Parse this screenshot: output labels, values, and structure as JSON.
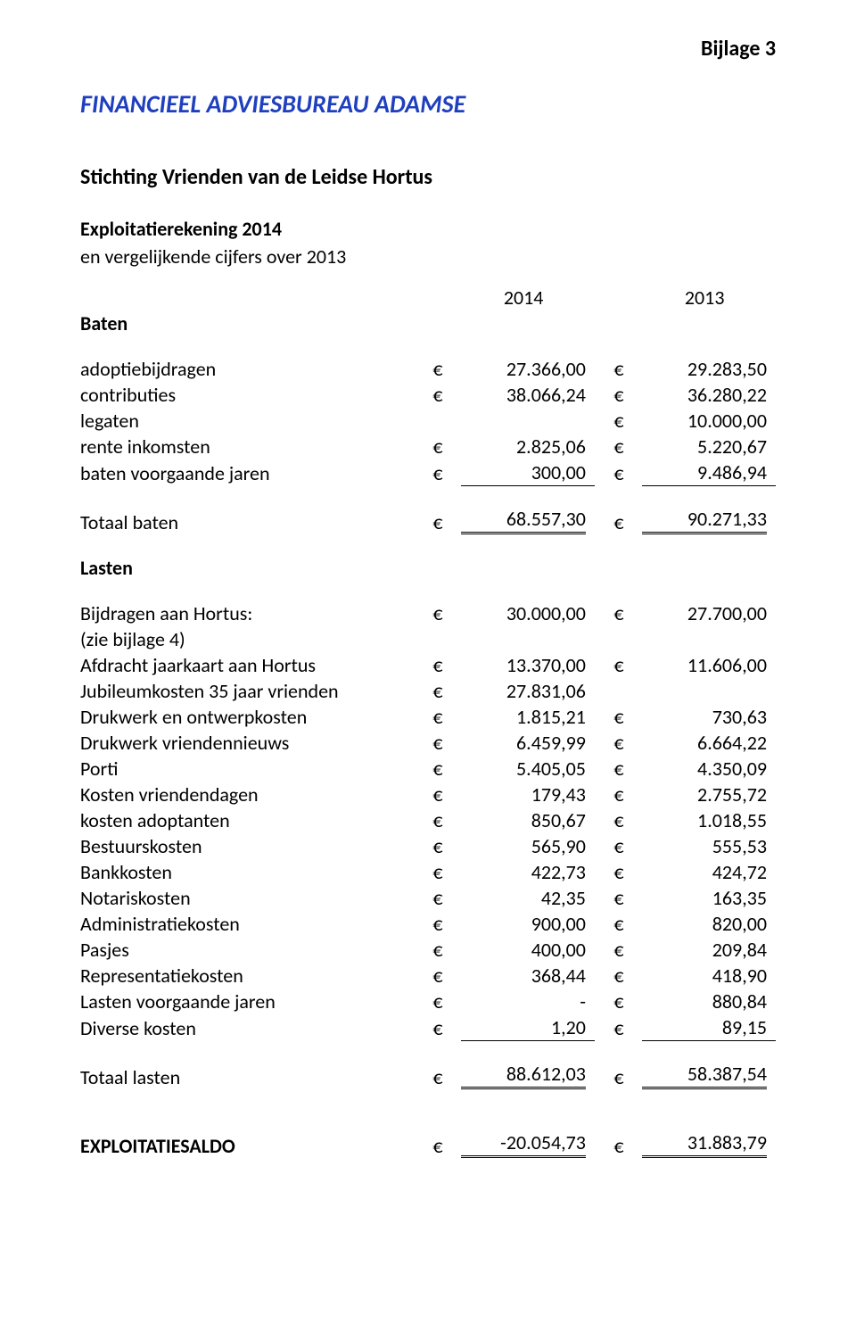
{
  "page": {
    "bijlage": "Bijlage 3",
    "company": "FINANCIEEL ADVIESBUREAU ADAMSE",
    "company_color": "#1f3fbf",
    "subtitle": "Stichting Vrienden van de Leidse Hortus",
    "section_title": "Exploitatierekening 2014",
    "section_sub": "en vergelijkende cijfers over 2013",
    "year1": "2014",
    "year2": "2013",
    "currency": "€"
  },
  "baten": {
    "heading": "Baten",
    "rows": [
      {
        "label": "adoptiebijdragen",
        "v1": "27.366,00",
        "v2": "29.283,50"
      },
      {
        "label": "contributies",
        "v1": "38.066,24",
        "v2": "36.280,22"
      },
      {
        "label": "legaten",
        "v1": "",
        "v2": "10.000,00"
      },
      {
        "label": "rente inkomsten",
        "v1": "2.825,06",
        "v2": "5.220,67"
      },
      {
        "label": "baten voorgaande jaren",
        "v1": "300,00",
        "v2": "9.486,94"
      }
    ],
    "total_label": "Totaal baten",
    "total_v1": "68.557,30",
    "total_v2": "90.271,33"
  },
  "lasten": {
    "heading": "Lasten",
    "sub_heading": "Bijdragen aan Hortus:",
    "sub_note": "(zie bijlage 4)",
    "sub_v1": "30.000,00",
    "sub_v2": "27.700,00",
    "rows": [
      {
        "label": "Afdracht jaarkaart aan Hortus",
        "v1": "13.370,00",
        "v2": "11.606,00"
      },
      {
        "label": "Jubileumkosten 35 jaar vrienden",
        "v1": "27.831,06",
        "v2": ""
      },
      {
        "label": "Drukwerk en ontwerpkosten",
        "v1": "1.815,21",
        "v2": "730,63"
      },
      {
        "label": "Drukwerk vriendennieuws",
        "v1": "6.459,99",
        "v2": "6.664,22"
      },
      {
        "label": "Porti",
        "v1": "5.405,05",
        "v2": "4.350,09"
      },
      {
        "label": "Kosten vriendendagen",
        "v1": "179,43",
        "v2": "2.755,72"
      },
      {
        "label": "kosten adoptanten",
        "v1": "850,67",
        "v2": "1.018,55"
      },
      {
        "label": "Bestuurskosten",
        "v1": "565,90",
        "v2": "555,53"
      },
      {
        "label": "Bankkosten",
        "v1": "422,73",
        "v2": "424,72"
      },
      {
        "label": "Notariskosten",
        "v1": "42,35",
        "v2": "163,35"
      },
      {
        "label": "Administratiekosten",
        "v1": "900,00",
        "v2": "820,00"
      },
      {
        "label": "Pasjes",
        "v1": "400,00",
        "v2": "209,84"
      },
      {
        "label": "Representatiekosten",
        "v1": "368,44",
        "v2": "418,90"
      },
      {
        "label": "Lasten voorgaande jaren",
        "v1": "-",
        "v2": "880,84"
      },
      {
        "label": "Diverse kosten",
        "v1": "1,20",
        "v2": "89,15"
      }
    ],
    "total_label": "Totaal lasten",
    "total_v1": "88.612,03",
    "total_v2": "58.387,54"
  },
  "saldo": {
    "label": "EXPLOITATIESALDO",
    "v1": "-20.054,73",
    "v2": "31.883,79"
  }
}
